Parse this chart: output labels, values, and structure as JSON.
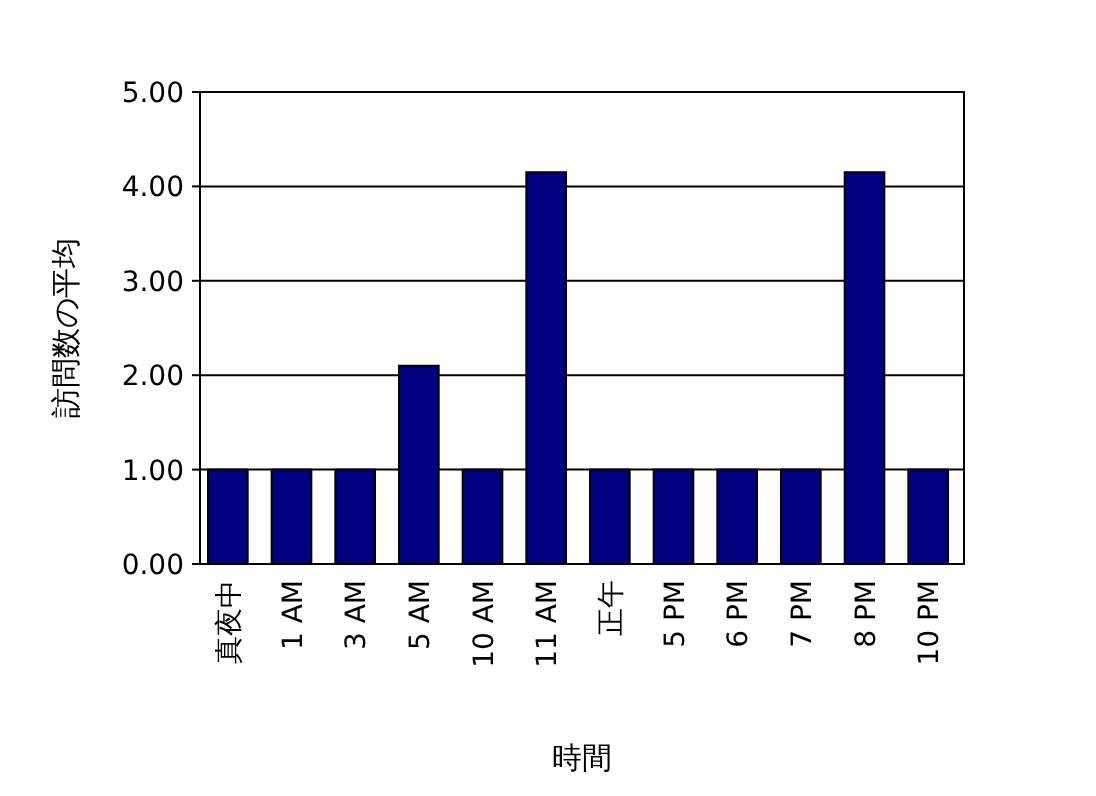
{
  "chart_data": {
    "type": "bar",
    "xlabel": "時間",
    "ylabel": "訪問数の平均",
    "categories": [
      "真夜中",
      "1 AM",
      "3 AM",
      "5 AM",
      "10 AM",
      "11 AM",
      "正午",
      "5 PM",
      "6 PM",
      "7 PM",
      "8 PM",
      "10 PM"
    ],
    "values": [
      1,
      1,
      1,
      2.1,
      1,
      4.15,
      1,
      1,
      1,
      1,
      4.15,
      1
    ],
    "color": "#000080",
    "ylim": [
      0,
      5
    ],
    "yticks": [
      {
        "value": 0,
        "label": "0.00"
      },
      {
        "value": 1,
        "label": "1.00"
      },
      {
        "value": 2,
        "label": "2.00"
      },
      {
        "value": 3,
        "label": "3.00"
      },
      {
        "value": 4,
        "label": "4.00"
      },
      {
        "value": 5,
        "label": "5.00"
      }
    ],
    "grid": "y"
  }
}
